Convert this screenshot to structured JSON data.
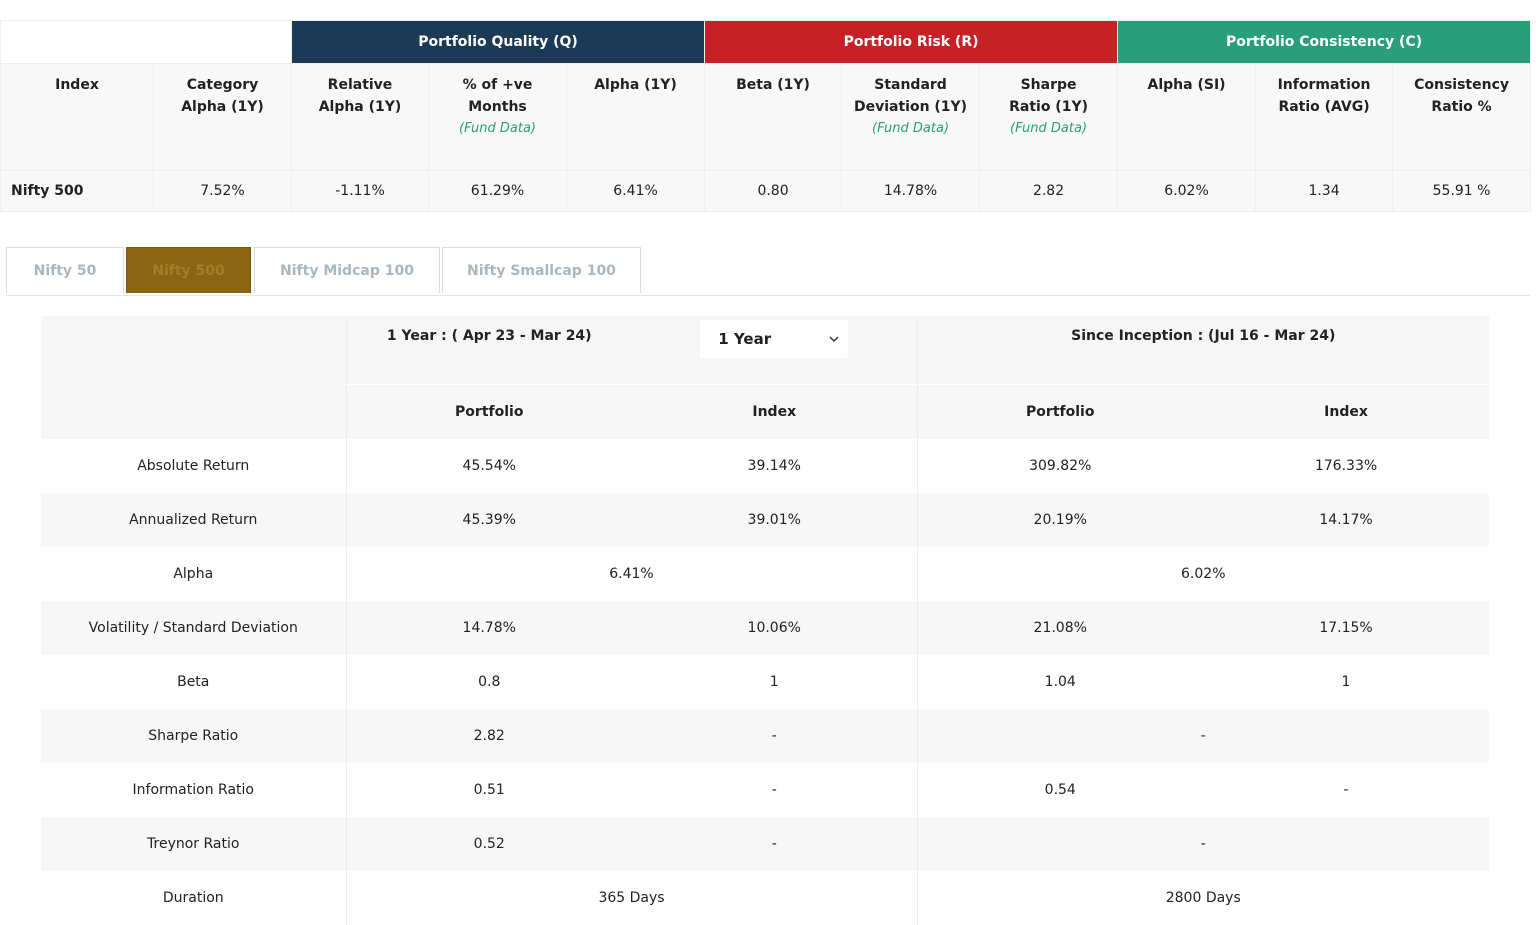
{
  "summary": {
    "groups": {
      "quality": "Portfolio Quality (Q)",
      "risk": "Portfolio Risk (R)",
      "consistency": "Portfolio Consistency (C)"
    },
    "headers": {
      "index": "Index",
      "category_alpha": "Category Alpha (1Y)",
      "relative_alpha": "Relative Alpha (1Y)",
      "pos_months": "% of +ve Months",
      "pos_months_sub": "(Fund Data)",
      "alpha_1y": "Alpha (1Y)",
      "beta_1y": "Beta (1Y)",
      "std_dev": "Standard Deviation (1Y)",
      "std_dev_sub": "(Fund Data)",
      "sharpe": "Sharpe Ratio (1Y)",
      "sharpe_sub": "(Fund Data)",
      "alpha_si": "Alpha (SI)",
      "info_ratio": "Information Ratio (AVG)",
      "consistency_ratio": "Consistency Ratio %"
    },
    "row": {
      "index": "Nifty 500",
      "category_alpha": "7.52%",
      "relative_alpha": "-1.11%",
      "pos_months": "61.29%",
      "alpha_1y": "6.41%",
      "beta_1y": "0.80",
      "std_dev": "14.78%",
      "sharpe": "2.82",
      "alpha_si": "6.02%",
      "info_ratio": "1.34",
      "consistency_ratio": "55.91 %"
    }
  },
  "tabs": [
    "Nifty 50",
    "Nifty 500",
    "Nifty Midcap 100",
    "Nifty Smallcap 100"
  ],
  "active_tab": "Nifty 500",
  "comparison": {
    "period1_title": "1 Year : ( Apr 23 - Mar 24)",
    "period_select": "1 Year",
    "period2_title": "Since Inception : (Jul 16 - Mar 24)",
    "col_portfolio": "Portfolio",
    "col_index": "Index",
    "rows": [
      {
        "label": "Absolute Return",
        "p1": "45.54%",
        "i1": "39.14%",
        "p2": "309.82%",
        "i2": "176.33%"
      },
      {
        "label": "Annualized Return",
        "p1": "45.39%",
        "i1": "39.01%",
        "p2": "20.19%",
        "i2": "14.17%"
      },
      {
        "label": "Alpha",
        "m1": "6.41%",
        "m2": "6.02%"
      },
      {
        "label": "Volatility / Standard Deviation",
        "p1": "14.78%",
        "i1": "10.06%",
        "p2": "21.08%",
        "i2": "17.15%"
      },
      {
        "label": "Beta",
        "p1": "0.8",
        "i1": "1",
        "p2": "1.04",
        "i2": "1"
      },
      {
        "label": "Sharpe Ratio",
        "p1": "2.82",
        "i1": "-",
        "m2": "-"
      },
      {
        "label": "Information Ratio",
        "p1": "0.51",
        "i1": "-",
        "p2": "0.54",
        "i2": "-"
      },
      {
        "label": "Treynor Ratio",
        "p1": "0.52",
        "i1": "-",
        "m2": "-"
      },
      {
        "label": "Duration",
        "m1": "365 Days",
        "m2": "2800 Days"
      }
    ]
  }
}
